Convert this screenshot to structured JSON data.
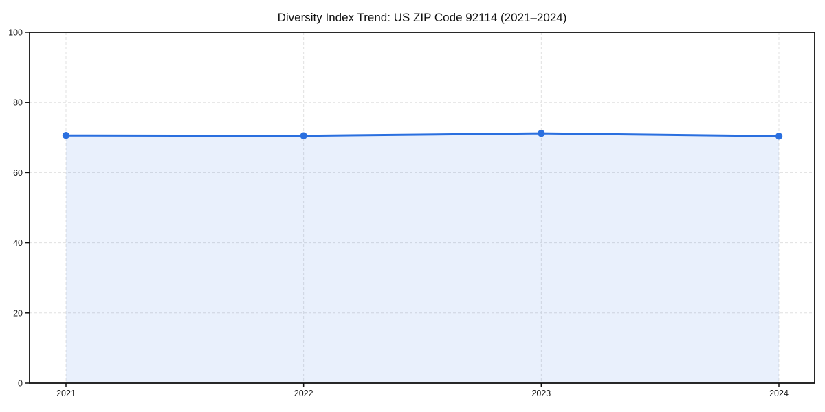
{
  "chart_data": {
    "type": "line",
    "subtype": "line-with-area-fill-and-markers",
    "title": "Diversity Index Trend: US ZIP Code 92114 (2021–2024)",
    "categories": [
      "2021",
      "2022",
      "2023",
      "2024"
    ],
    "series": [
      {
        "name": "Diversity Index",
        "values": [
          70.6,
          70.5,
          71.2,
          70.4
        ]
      }
    ],
    "xlabel": "",
    "ylabel": "",
    "ylim": [
      0,
      100
    ],
    "yticks": [
      0,
      20,
      40,
      60,
      80,
      100
    ],
    "grid": "dashed, horizontal and vertical",
    "legend": "none",
    "colors": {
      "line": "#2a6fdf",
      "marker": "#2a6fdf",
      "fill": "#2a6fdf",
      "fill_opacity": 0.1,
      "grid": "#e0e0e0",
      "spine": "#111111",
      "tick": "#111111",
      "tick_label": "#1a1a1a",
      "title": "#111111",
      "background": "#ffffff"
    }
  }
}
